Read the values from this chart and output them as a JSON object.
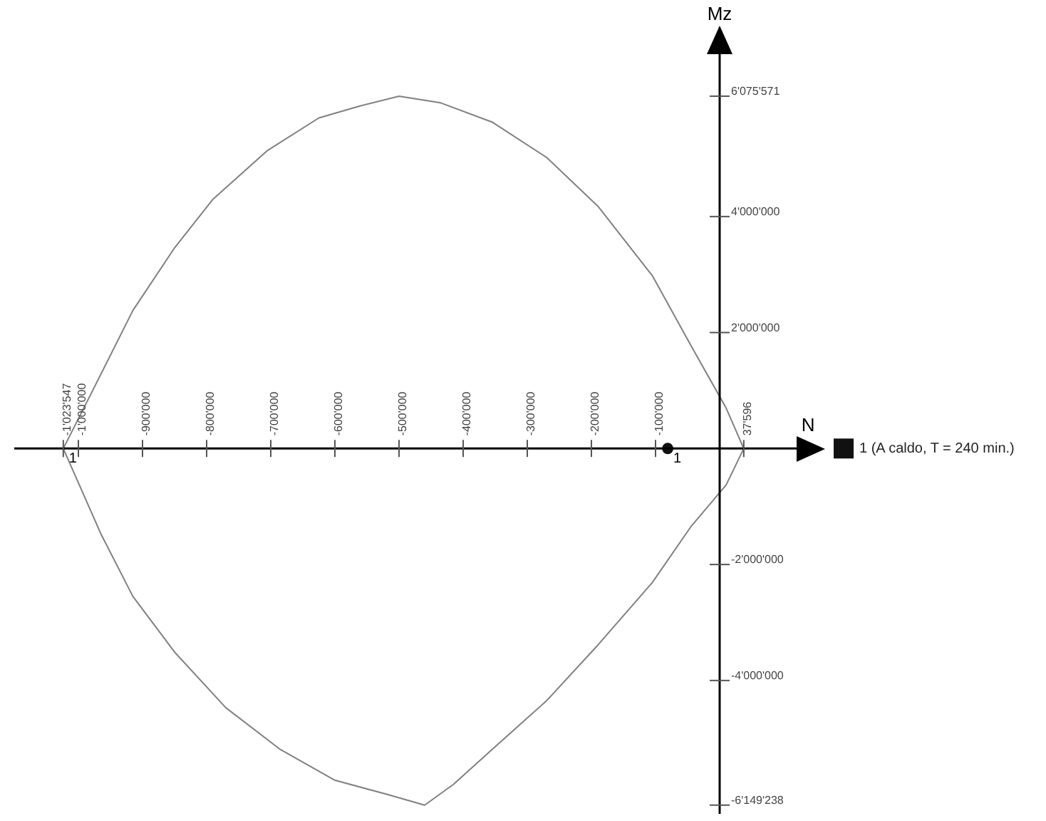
{
  "chart_data": {
    "type": "line",
    "xlabel": "N",
    "ylabel": "Mz",
    "xlim": [
      -1100000,
      120000
    ],
    "ylim": [
      -6300000,
      6800000
    ],
    "xticks": [
      {
        "value": -1023547,
        "label": "-1'023'547"
      },
      {
        "value": -1000000,
        "label": "-1'000'000"
      },
      {
        "value": -900000,
        "label": "-900'000"
      },
      {
        "value": -800000,
        "label": "-800'000"
      },
      {
        "value": -700000,
        "label": "-700'000"
      },
      {
        "value": -600000,
        "label": "-600'000"
      },
      {
        "value": -500000,
        "label": "-500'000"
      },
      {
        "value": -400000,
        "label": "-400'000"
      },
      {
        "value": -300000,
        "label": "-300'000"
      },
      {
        "value": -200000,
        "label": "-200'000"
      },
      {
        "value": -100000,
        "label": "-100'000"
      },
      {
        "value": 37596,
        "label": "37'596"
      }
    ],
    "yticks": [
      {
        "value": 6075571,
        "label": "6'075'571"
      },
      {
        "value": 4000000,
        "label": "4'000'000"
      },
      {
        "value": 2000000,
        "label": "2'000'000"
      },
      {
        "value": -2000000,
        "label": "-2'000'000"
      },
      {
        "value": -4000000,
        "label": "-4'000'000"
      },
      {
        "value": -6149238,
        "label": "-6'149'238"
      }
    ],
    "legend": "right",
    "series": [
      {
        "color": "#808080",
        "marker": "none",
        "x": [
          -1023547,
          -975000,
          -915000,
          -850000,
          -790000,
          -705000,
          -625000,
          -560000,
          -500000,
          -435000,
          -355000,
          -270000,
          -190000,
          -105000,
          -45000,
          10000,
          37596
        ],
        "values": [
          0,
          1060000,
          2380000,
          3460000,
          4300000,
          5140000,
          5700000,
          5910000,
          6075571,
          5960000,
          5630000,
          5020000,
          4180000,
          2980000,
          1780000,
          700000,
          0
        ]
      },
      {
        "color": "#808080",
        "marker": "none",
        "x": [
          -1023547,
          -965000,
          -915000,
          -850000,
          -770000,
          -685000,
          -600000,
          -520000,
          -460000,
          -415000,
          -355000,
          -270000,
          -190000,
          -105000,
          -45000,
          10000,
          37596
        ],
        "values": [
          0,
          -1470000,
          -2550000,
          -3510000,
          -4470000,
          -5190000,
          -5720000,
          -5960000,
          -6149238,
          -5790000,
          -5190000,
          -4350000,
          -3390000,
          -2310000,
          -1350000,
          -630000,
          0
        ]
      },
      {
        "type": "scatter",
        "name": "1 (A caldo, T = 240 min.)",
        "color": "#111111",
        "marker": "circle",
        "x": [
          -81000
        ],
        "values": [
          0
        ]
      }
    ],
    "annotations": [
      {
        "text": "1",
        "x": -81000,
        "y": 0
      },
      {
        "text": "1",
        "x": -1023547,
        "y": 0
      }
    ]
  }
}
